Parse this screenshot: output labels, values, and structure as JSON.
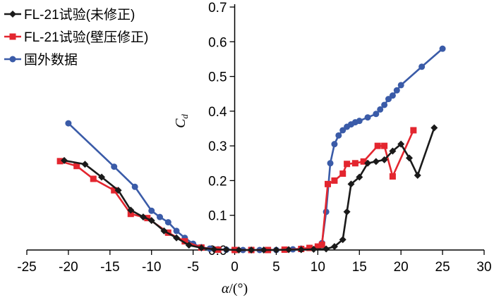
{
  "chart_data": {
    "type": "line",
    "title": "",
    "xlabel_symbol": "α",
    "xlabel_unit": "/(°)",
    "ylabel_symbol": "C",
    "ylabel_sub": "d",
    "xlim": [
      -25,
      30
    ],
    "ylim": [
      0.0,
      0.7
    ],
    "xticks": [
      -25,
      -20,
      -15,
      -10,
      -5,
      0,
      5,
      10,
      15,
      20,
      25,
      30
    ],
    "yticks": [
      "0.0",
      "0.1",
      "0.2",
      "0.3",
      "0.4",
      "0.5",
      "0.6",
      "0.7"
    ],
    "legend_position": "top-left",
    "grid": false,
    "series": [
      {
        "name": "FL-21试验(未修正)",
        "color": "#1a1a1a",
        "marker": "diamond",
        "points": [
          [
            -20.5,
            0.258
          ],
          [
            -18,
            0.247
          ],
          [
            -16,
            0.21
          ],
          [
            -14,
            0.172
          ],
          [
            -12.5,
            0.115
          ],
          [
            -11,
            0.095
          ],
          [
            -10,
            0.085
          ],
          [
            -8.5,
            0.055
          ],
          [
            -7,
            0.035
          ],
          [
            -5.5,
            0.014
          ],
          [
            -4,
            0.006
          ],
          [
            -2.5,
            0.002
          ],
          [
            -1,
            0.001
          ],
          [
            0.5,
            0.0
          ],
          [
            2,
            0.0
          ],
          [
            3.5,
            0.0
          ],
          [
            5,
            0.0
          ],
          [
            6.5,
            0.001
          ],
          [
            8,
            0.001
          ],
          [
            9.5,
            0.002
          ],
          [
            11,
            0.003
          ],
          [
            12,
            0.01
          ],
          [
            13,
            0.03
          ],
          [
            13.5,
            0.11
          ],
          [
            14,
            0.19
          ],
          [
            15,
            0.21
          ],
          [
            16,
            0.25
          ],
          [
            17,
            0.255
          ],
          [
            18,
            0.26
          ],
          [
            19,
            0.285
          ],
          [
            20,
            0.305
          ],
          [
            21,
            0.265
          ],
          [
            22,
            0.215
          ],
          [
            24,
            0.352
          ]
        ]
      },
      {
        "name": "FL-21试验(壁压修正)",
        "color": "#e3262f",
        "marker": "square",
        "points": [
          [
            -21,
            0.256
          ],
          [
            -19,
            0.242
          ],
          [
            -17,
            0.205
          ],
          [
            -14.5,
            0.172
          ],
          [
            -12.5,
            0.104
          ],
          [
            -10.5,
            0.092
          ],
          [
            -8,
            0.05
          ],
          [
            -6,
            0.025
          ],
          [
            -4,
            0.007
          ],
          [
            -2,
            0.001
          ],
          [
            0,
            0.0
          ],
          [
            2,
            0.0
          ],
          [
            4,
            0.0
          ],
          [
            6,
            0.001
          ],
          [
            8,
            0.003
          ],
          [
            9,
            0.006
          ],
          [
            10,
            0.01
          ],
          [
            10.5,
            0.015
          ],
          [
            11.2,
            0.19
          ],
          [
            12,
            0.2
          ],
          [
            13,
            0.22
          ],
          [
            13.5,
            0.248
          ],
          [
            14.5,
            0.25
          ],
          [
            15.5,
            0.255
          ],
          [
            17.2,
            0.3
          ],
          [
            18,
            0.3
          ],
          [
            19,
            0.212
          ],
          [
            21.5,
            0.345
          ]
        ]
      },
      {
        "name": "国外数据",
        "color": "#3a5ba8",
        "marker": "circle",
        "points": [
          [
            -20,
            0.365
          ],
          [
            -14.5,
            0.24
          ],
          [
            -12,
            0.182
          ],
          [
            -10,
            0.113
          ],
          [
            -9,
            0.095
          ],
          [
            -8,
            0.08
          ],
          [
            -7,
            0.055
          ],
          [
            -6,
            0.035
          ],
          [
            -5,
            0.018
          ],
          [
            -4,
            0.008
          ],
          [
            -3,
            0.004
          ],
          [
            -2,
            0.002
          ],
          [
            -1,
            0.001
          ],
          [
            0,
            0.0
          ],
          [
            1,
            0.0
          ],
          [
            2,
            0.0
          ],
          [
            3,
            0.0
          ],
          [
            4,
            0.0
          ],
          [
            5,
            0.0
          ],
          [
            6,
            0.001
          ],
          [
            7,
            0.002
          ],
          [
            8,
            0.004
          ],
          [
            9,
            0.006
          ],
          [
            10,
            0.01
          ],
          [
            10.5,
            0.02
          ],
          [
            11,
            0.11
          ],
          [
            11.5,
            0.25
          ],
          [
            12,
            0.305
          ],
          [
            12.5,
            0.33
          ],
          [
            13,
            0.345
          ],
          [
            13.5,
            0.355
          ],
          [
            14,
            0.362
          ],
          [
            14.5,
            0.368
          ],
          [
            15,
            0.372
          ],
          [
            16,
            0.382
          ],
          [
            17,
            0.392
          ],
          [
            17.5,
            0.405
          ],
          [
            18,
            0.418
          ],
          [
            18.5,
            0.435
          ],
          [
            19,
            0.445
          ],
          [
            19.5,
            0.46
          ],
          [
            20,
            0.475
          ],
          [
            22.5,
            0.528
          ],
          [
            25,
            0.58
          ]
        ]
      }
    ]
  }
}
